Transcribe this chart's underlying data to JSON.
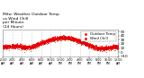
{
  "title": "Milw. Weather Outdoor Temp\nvs Wind Chill\nper Minute\n(24 Hours)",
  "title_fontsize": 3.2,
  "bg_color": "#ffffff",
  "plot_bg_color": "#ffffff",
  "grid_color": "#aaaaaa",
  "temp_color": "#ff0000",
  "windchill_color": "#dd0000",
  "ylim": [
    -10,
    55
  ],
  "yticks": [
    -10,
    0,
    10,
    20,
    30,
    40,
    50
  ],
  "ytick_fontsize": 3.0,
  "xtick_fontsize": 2.3,
  "legend_fontsize": 2.8,
  "seed": 42,
  "n": 1440,
  "legend_labels": [
    "Outdoor Temp",
    "Wind Chill"
  ]
}
